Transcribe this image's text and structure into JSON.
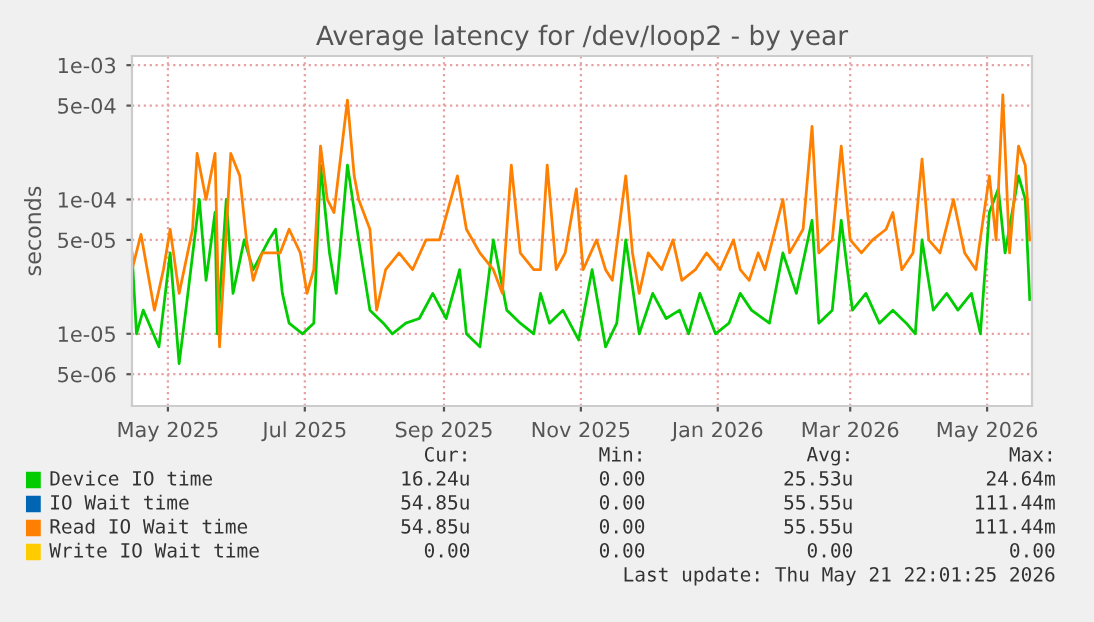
{
  "chart_data": {
    "type": "line",
    "title": "Average latency for /dev/loop2 - by year",
    "ylabel": "seconds",
    "log": "y",
    "grid": true,
    "legend": "bottom",
    "marker": "none",
    "line_style": "solid",
    "xlim": [
      "2025-04-15",
      "2026-05-21"
    ],
    "xticks": [
      {
        "value": "2025-05-01",
        "label": "May 2025"
      },
      {
        "value": "2025-07-01",
        "label": "Jul 2025"
      },
      {
        "value": "2025-09-01",
        "label": "Sep 2025"
      },
      {
        "value": "2025-11-01",
        "label": "Nov 2025"
      },
      {
        "value": "2026-01-01",
        "label": "Jan 2026"
      },
      {
        "value": "2026-03-01",
        "label": "Mar 2026"
      },
      {
        "value": "2026-05-01",
        "label": "May 2026"
      }
    ],
    "ylim": [
      2.9e-06,
      0.00117
    ],
    "yticks": [
      {
        "value": 5e-06,
        "label": "5e-06"
      },
      {
        "value": 1e-05,
        "label": "1e-05"
      },
      {
        "value": 5e-05,
        "label": "5e-05"
      },
      {
        "value": 0.0001,
        "label": "1e-04"
      },
      {
        "value": 0.0005,
        "label": "5e-04"
      },
      {
        "value": 0.001,
        "label": "1e-03"
      }
    ],
    "series": [
      {
        "name": "Device IO time",
        "color": "#00cc00",
        "x": [
          "2025-04-15",
          "2025-04-17",
          "2025-04-20",
          "2025-04-27",
          "2025-05-02",
          "2025-05-06",
          "2025-05-09",
          "2025-05-15",
          "2025-05-18",
          "2025-05-22",
          "2025-05-23",
          "2025-05-27",
          "2025-05-30",
          "2025-06-04",
          "2025-06-08",
          "2025-06-15",
          "2025-06-18",
          "2025-06-21",
          "2025-06-24",
          "2025-06-30",
          "2025-07-05",
          "2025-07-08",
          "2025-07-12",
          "2025-07-15",
          "2025-07-20",
          "2025-07-25",
          "2025-07-30",
          "2025-08-05",
          "2025-08-09",
          "2025-08-15",
          "2025-08-21",
          "2025-08-27",
          "2025-09-02",
          "2025-09-08",
          "2025-09-11",
          "2025-09-17",
          "2025-09-23",
          "2025-09-29",
          "2025-10-05",
          "2025-10-11",
          "2025-10-14",
          "2025-10-18",
          "2025-10-24",
          "2025-10-31",
          "2025-11-06",
          "2025-11-12",
          "2025-11-17",
          "2025-11-21",
          "2025-11-27",
          "2025-12-03",
          "2025-12-09",
          "2025-12-15",
          "2025-12-19",
          "2025-12-24",
          "2025-12-31",
          "2026-01-06",
          "2026-01-11",
          "2026-01-16",
          "2026-01-24",
          "2026-01-30",
          "2026-02-05",
          "2026-02-12",
          "2026-02-15",
          "2026-02-21",
          "2026-02-25",
          "2026-03-02",
          "2026-03-08",
          "2026-03-14",
          "2026-03-20",
          "2026-03-26",
          "2026-03-30",
          "2026-04-02",
          "2026-04-07",
          "2026-04-13",
          "2026-04-18",
          "2026-04-24",
          "2026-04-28",
          "2026-05-02",
          "2026-05-06",
          "2026-05-09",
          "2026-05-15",
          "2026-05-18",
          "2026-05-20"
        ],
        "values": [
          4e-05,
          1e-05,
          1.5e-05,
          8e-06,
          4e-05,
          6e-06,
          1.5e-05,
          0.0001,
          2.5e-05,
          8e-05,
          1e-05,
          0.0001,
          2e-05,
          5e-05,
          3e-05,
          5e-05,
          6e-05,
          2e-05,
          1.2e-05,
          1e-05,
          1.2e-05,
          0.00018,
          4e-05,
          2e-05,
          0.00018,
          5e-05,
          1.5e-05,
          1.2e-05,
          1e-05,
          1.2e-05,
          1.3e-05,
          2e-05,
          1.3e-05,
          3e-05,
          1e-05,
          8e-06,
          5e-05,
          1.5e-05,
          1.2e-05,
          1e-05,
          2e-05,
          1.2e-05,
          1.5e-05,
          9e-06,
          3e-05,
          8e-06,
          1.2e-05,
          5e-05,
          1e-05,
          2e-05,
          1.3e-05,
          1.5e-05,
          1e-05,
          2e-05,
          1e-05,
          1.2e-05,
          2e-05,
          1.5e-05,
          1.2e-05,
          4e-05,
          2e-05,
          7e-05,
          1.2e-05,
          1.5e-05,
          7e-05,
          1.5e-05,
          2e-05,
          1.2e-05,
          1.5e-05,
          1.2e-05,
          1e-05,
          5e-05,
          1.5e-05,
          2e-05,
          1.5e-05,
          2e-05,
          1e-05,
          8e-05,
          0.00012,
          4e-05,
          0.00015,
          0.0001,
          1.8e-05
        ]
      },
      {
        "name": "IO Wait time",
        "color": "#0066b3"
      },
      {
        "name": "Read IO Wait time",
        "color": "#ff8000",
        "x": [
          "2025-04-15",
          "2025-04-19",
          "2025-04-25",
          "2025-04-29",
          "2025-05-02",
          "2025-05-06",
          "2025-05-12",
          "2025-05-14",
          "2025-05-18",
          "2025-05-22",
          "2025-05-24",
          "2025-05-29",
          "2025-06-02",
          "2025-06-05",
          "2025-06-08",
          "2025-06-12",
          "2025-06-20",
          "2025-06-24",
          "2025-06-29",
          "2025-07-02",
          "2025-07-05",
          "2025-07-08",
          "2025-07-11",
          "2025-07-14",
          "2025-07-20",
          "2025-07-23",
          "2025-07-25",
          "2025-07-30",
          "2025-08-02",
          "2025-08-06",
          "2025-08-12",
          "2025-08-18",
          "2025-08-24",
          "2025-08-30",
          "2025-09-07",
          "2025-09-11",
          "2025-09-17",
          "2025-09-23",
          "2025-09-27",
          "2025-10-01",
          "2025-10-05",
          "2025-10-11",
          "2025-10-14",
          "2025-10-17",
          "2025-10-21",
          "2025-10-25",
          "2025-10-30",
          "2025-11-02",
          "2025-11-08",
          "2025-11-12",
          "2025-11-15",
          "2025-11-21",
          "2025-11-24",
          "2025-11-27",
          "2025-12-01",
          "2025-12-07",
          "2025-12-12",
          "2025-12-16",
          "2025-12-22",
          "2025-12-27",
          "2026-01-02",
          "2026-01-08",
          "2026-01-11",
          "2026-01-15",
          "2026-01-19",
          "2026-01-22",
          "2026-01-30",
          "2026-02-02",
          "2026-02-08",
          "2026-02-12",
          "2026-02-15",
          "2026-02-21",
          "2026-02-25",
          "2026-03-01",
          "2026-03-06",
          "2026-03-11",
          "2026-03-17",
          "2026-03-20",
          "2026-03-24",
          "2026-03-29",
          "2026-04-02",
          "2026-04-05",
          "2026-04-10",
          "2026-04-16",
          "2026-04-21",
          "2026-04-26",
          "2026-05-02",
          "2026-05-05",
          "2026-05-08",
          "2026-05-11",
          "2026-05-15",
          "2026-05-18",
          "2026-05-20"
        ],
        "values": [
          3e-05,
          5.5e-05,
          1.5e-05,
          3e-05,
          6e-05,
          2e-05,
          6e-05,
          0.00022,
          0.0001,
          0.00022,
          8e-06,
          0.00022,
          0.00015,
          5e-05,
          2.5e-05,
          4e-05,
          4e-05,
          6e-05,
          4e-05,
          2e-05,
          3e-05,
          0.00025,
          0.0001,
          8e-05,
          0.00055,
          0.00015,
          0.0001,
          6e-05,
          1.5e-05,
          3e-05,
          4e-05,
          3e-05,
          5e-05,
          5e-05,
          0.00015,
          6e-05,
          4e-05,
          3e-05,
          2e-05,
          0.00018,
          4e-05,
          3e-05,
          3e-05,
          0.00018,
          3e-05,
          4e-05,
          0.00012,
          3e-05,
          5e-05,
          3e-05,
          2.5e-05,
          0.00015,
          4e-05,
          2e-05,
          4e-05,
          3e-05,
          5e-05,
          2.5e-05,
          3e-05,
          4e-05,
          3e-05,
          5e-05,
          3e-05,
          2.5e-05,
          4e-05,
          3e-05,
          0.0001,
          4e-05,
          6e-05,
          0.00035,
          4e-05,
          5e-05,
          0.00025,
          5e-05,
          4e-05,
          5e-05,
          6e-05,
          8e-05,
          3e-05,
          4e-05,
          0.0002,
          5e-05,
          4e-05,
          0.0001,
          4e-05,
          3e-05,
          0.00015,
          5e-05,
          0.0006,
          4e-05,
          0.00025,
          0.00018,
          5e-05
        ]
      },
      {
        "name": "Write IO Wait time",
        "color": "#ffcc00"
      }
    ],
    "annotations": [
      "Cur:",
      "Min:",
      "Avg:",
      "Max:",
      "16.24u",
      "0.00",
      "25.53u",
      "24.64m",
      "54.85u",
      "0.00",
      "55.55u",
      "111.44m",
      "54.85u",
      "0.00",
      "55.55u",
      "111.44m",
      "0.00",
      "0.00",
      "0.00",
      "0.00",
      "Last update: Thu May 21 22:01:25 2026"
    ]
  }
}
